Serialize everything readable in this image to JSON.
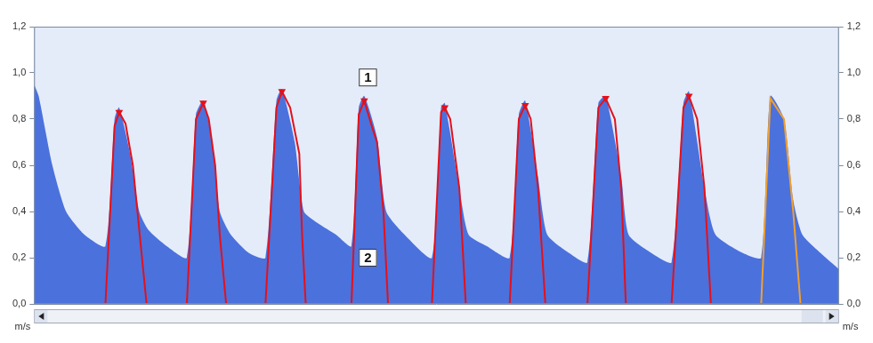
{
  "chart_data": {
    "type": "line",
    "xlim": [
      0,
      880
    ],
    "ylim": [
      0,
      1.2
    ],
    "yticks": [
      {
        "value": 0,
        "label": "0,0"
      },
      {
        "value": 0.2,
        "label": "0,2"
      },
      {
        "value": 0.4,
        "label": "0,4"
      },
      {
        "value": 0.6,
        "label": "0,6"
      },
      {
        "value": 0.8,
        "label": "0,8"
      },
      {
        "value": 1.0,
        "label": "1,0"
      },
      {
        "value": 1.2,
        "label": "1,2"
      }
    ],
    "y2lim": [
      0,
      1.2
    ],
    "y2ticks": [
      {
        "value": 0,
        "label": "0,0"
      },
      {
        "value": 0.2,
        "label": "0,2"
      },
      {
        "value": 0.4,
        "label": "0,4"
      },
      {
        "value": 0.6,
        "label": "0,6"
      },
      {
        "value": 0.8,
        "label": "0,8"
      },
      {
        "value": 1.0,
        "label": "1,0"
      },
      {
        "value": 1.2,
        "label": "1,2"
      }
    ],
    "ylabel": "m/s",
    "y2label": "m/s",
    "grid": false,
    "tick_labels": "y",
    "series": [
      {
        "type": "area",
        "color": "#2452d6",
        "x": [
          0,
          5,
          20,
          35,
          55,
          78,
          88,
          93,
          105,
          115,
          125,
          145,
          167,
          177,
          185,
          195,
          203,
          215,
          235,
          253,
          265,
          271,
          285,
          295,
          310,
          330,
          347,
          355,
          361,
          375,
          385,
          405,
          435,
          445,
          449,
          465,
          475,
          495,
          520,
          530,
          537,
          551,
          561,
          585,
          605,
          617,
          625,
          642,
          650,
          675,
          697,
          710,
          716,
          733,
          745,
          775,
          795,
          805,
          820,
          830,
          840,
          860,
          880
        ],
        "values": [
          0.95,
          0.9,
          0.6,
          0.4,
          0.3,
          0.25,
          0.8,
          0.85,
          0.65,
          0.4,
          0.32,
          0.25,
          0.2,
          0.82,
          0.88,
          0.7,
          0.4,
          0.3,
          0.22,
          0.2,
          0.88,
          0.93,
          0.7,
          0.4,
          0.35,
          0.3,
          0.25,
          0.85,
          0.9,
          0.72,
          0.4,
          0.3,
          0.2,
          0.85,
          0.87,
          0.5,
          0.3,
          0.25,
          0.2,
          0.82,
          0.88,
          0.55,
          0.3,
          0.22,
          0.18,
          0.87,
          0.9,
          0.55,
          0.3,
          0.22,
          0.18,
          0.87,
          0.92,
          0.5,
          0.3,
          0.22,
          0.2,
          0.9,
          0.8,
          0.45,
          0.3,
          0.22,
          0.15
        ]
      },
      {
        "type": "line",
        "color": "#e3111b",
        "line_style": "solid",
        "x": [
          78,
          88,
          93,
          100,
          108,
          113,
          123,
          167,
          177,
          185,
          191,
          198,
          203,
          210,
          253,
          265,
          271,
          280,
          290,
          293,
          297,
          347,
          355,
          361,
          370,
          375,
          382,
          387,
          435,
          445,
          449,
          455,
          465,
          472,
          520,
          530,
          537,
          543,
          551,
          559,
          605,
          617,
          625,
          635,
          642,
          647,
          697,
          710,
          716,
          725,
          733,
          740,
          795
        ],
        "values": [
          0,
          0.77,
          0.83,
          0.78,
          0.6,
          0.4,
          0,
          0,
          0.8,
          0.87,
          0.8,
          0.6,
          0.3,
          0,
          0,
          0.85,
          0.92,
          0.85,
          0.65,
          0.3,
          0,
          0,
          0.82,
          0.88,
          0.76,
          0.7,
          0.4,
          0,
          0,
          0.83,
          0.85,
          0.8,
          0.5,
          0,
          0,
          0.8,
          0.86,
          0.8,
          0.5,
          0,
          0,
          0.85,
          0.89,
          0.8,
          0.5,
          0,
          0,
          0.85,
          0.9,
          0.8,
          0.5,
          0,
          0
        ]
      },
      {
        "type": "line",
        "color": "#f0a030",
        "line_style": "solid",
        "x": [
          795,
          805,
          820,
          830,
          838
        ],
        "values": [
          0,
          0.89,
          0.8,
          0.4,
          0
        ]
      },
      {
        "type": "scatter",
        "color": "#e3111b",
        "marker": "triangle-down",
        "x": [
          93,
          185,
          271,
          361,
          449,
          537,
          625,
          716
        ],
        "values": [
          0.83,
          0.87,
          0.92,
          0.88,
          0.85,
          0.86,
          0.89,
          0.9
        ]
      }
    ],
    "annotations": [
      {
        "text": "1",
        "x": 365,
        "y": 0.98
      },
      {
        "text": "2",
        "x": 365,
        "y": 0.2
      }
    ]
  }
}
